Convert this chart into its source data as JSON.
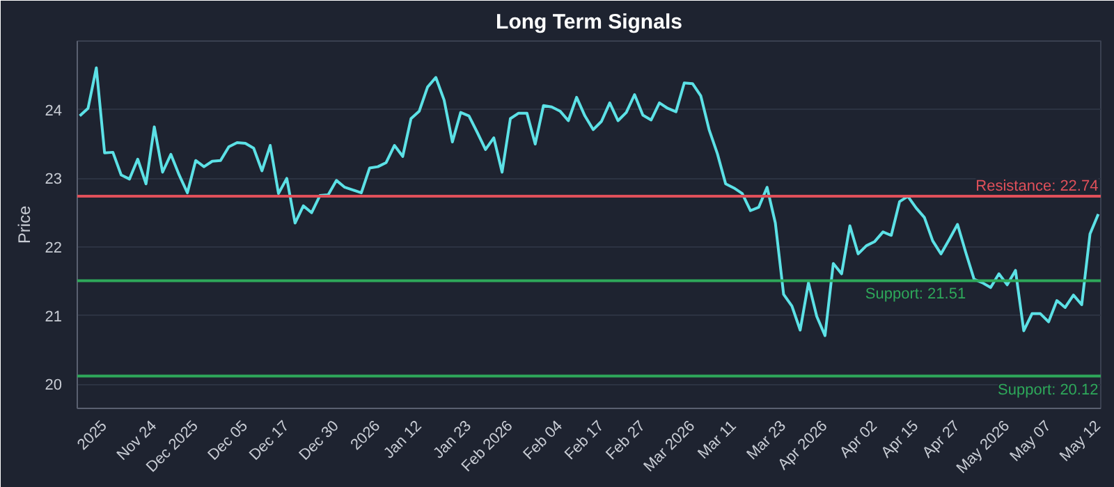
{
  "chart_data": {
    "type": "line",
    "title": "Long Term Signals",
    "ylabel": "Price",
    "categories": [
      null,
      null,
      null,
      "2025",
      null,
      null,
      null,
      null,
      null,
      "Nov 24",
      null,
      null,
      null,
      null,
      "Dec 2025",
      null,
      null,
      null,
      null,
      null,
      "Dec 05",
      null,
      null,
      null,
      null,
      "Dec 17",
      null,
      null,
      null,
      null,
      null,
      "Dec 30",
      null,
      null,
      null,
      null,
      "2026",
      null,
      null,
      null,
      null,
      "Jan 12",
      null,
      null,
      null,
      null,
      null,
      "Jan 23",
      null,
      null,
      null,
      null,
      "Feb 2026",
      null,
      null,
      null,
      null,
      null,
      "Feb 04",
      null,
      null,
      null,
      null,
      "Feb 17",
      null,
      null,
      null,
      null,
      "Feb 27",
      null,
      null,
      null,
      null,
      null,
      "Mar 2026",
      null,
      null,
      null,
      null,
      "Mar 11",
      null,
      null,
      null,
      null,
      null,
      "Mar 23",
      null,
      null,
      null,
      null,
      "Apr 2026",
      null,
      null,
      null,
      null,
      null,
      "Apr 02",
      null,
      null,
      null,
      null,
      "Apr 15",
      null,
      null,
      null,
      null,
      "Apr 27",
      null,
      null,
      null,
      null,
      null,
      "May 2026",
      null,
      null,
      null,
      null,
      "May 07",
      null,
      null,
      null,
      null,
      null,
      "May 12"
    ],
    "series": [
      {
        "color": "#5ce1e6",
        "values": [
          23.91,
          24.02,
          24.61,
          23.37,
          23.38,
          23.05,
          22.99,
          23.28,
          22.92,
          23.75,
          23.09,
          23.35,
          23.05,
          22.79,
          23.26,
          23.17,
          23.25,
          23.26,
          23.46,
          23.52,
          23.51,
          23.44,
          23.11,
          23.48,
          22.78,
          23.0,
          22.35,
          22.6,
          22.5,
          22.75,
          22.76,
          22.97,
          22.87,
          22.83,
          22.79,
          23.15,
          23.17,
          23.23,
          23.48,
          23.32,
          23.87,
          23.98,
          24.33,
          24.47,
          24.14,
          23.53,
          23.96,
          23.91,
          23.67,
          23.42,
          23.59,
          23.09,
          23.87,
          23.95,
          23.95,
          23.5,
          24.06,
          24.04,
          23.98,
          23.84,
          24.18,
          23.91,
          23.71,
          23.83,
          24.1,
          23.84,
          23.96,
          24.22,
          23.92,
          23.85,
          24.1,
          24.02,
          23.97,
          24.39,
          24.38,
          24.2,
          23.71,
          23.36,
          22.92,
          22.86,
          22.78,
          22.53,
          22.58,
          22.87,
          22.35,
          21.31,
          21.14,
          20.79,
          21.48,
          20.99,
          20.71,
          21.76,
          21.61,
          22.31,
          21.9,
          22.02,
          22.08,
          22.22,
          22.17,
          22.66,
          22.74,
          22.57,
          22.43,
          22.09,
          21.9,
          22.11,
          22.33,
          21.92,
          21.53,
          21.48,
          21.41,
          21.61,
          21.45,
          21.66,
          20.78,
          21.03,
          21.03,
          20.91,
          21.22,
          21.12,
          21.3,
          21.16,
          22.19,
          22.48
        ]
      }
    ],
    "ylim": [
      19.65,
      25.0
    ],
    "yticks": [
      20,
      21,
      22,
      23,
      24
    ],
    "grid": "y",
    "ref_lines": [
      {
        "axis": "y",
        "value": 22.74,
        "label": "Resistance: 22.74",
        "color": "#e0505a"
      },
      {
        "axis": "y",
        "value": 21.51,
        "label": "Support: 21.51",
        "color": "#2ea85a"
      },
      {
        "axis": "y",
        "value": 20.12,
        "label": "Support: 20.12",
        "color": "#2ea85a"
      }
    ]
  }
}
